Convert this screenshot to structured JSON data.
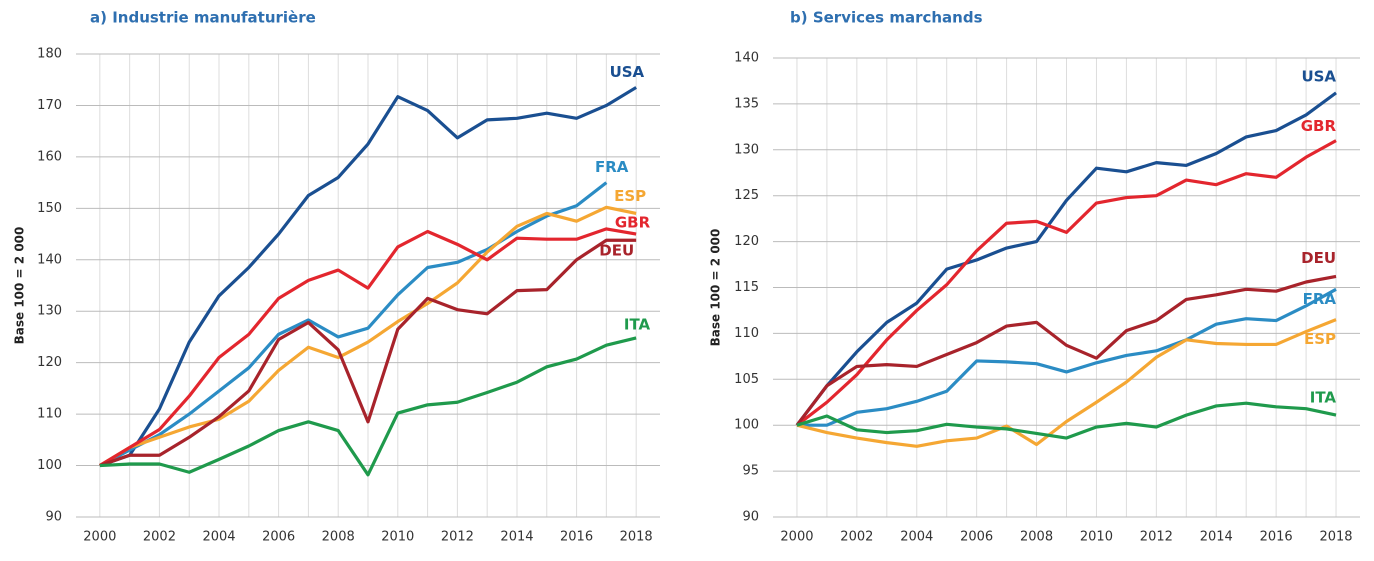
{
  "chart_data": [
    {
      "type": "line",
      "title": "a) Industrie manufaturière",
      "y_label": "Base 100 = 2 000",
      "x": [
        2000,
        2001,
        2002,
        2003,
        2004,
        2005,
        2006,
        2007,
        2008,
        2009,
        2010,
        2011,
        2012,
        2013,
        2014,
        2015,
        2016,
        2017,
        2018
      ],
      "xlim": [
        1999.2,
        2018.8
      ],
      "xticks": [
        2000,
        2002,
        2004,
        2006,
        2008,
        2010,
        2012,
        2014,
        2016,
        2018
      ],
      "ylim": [
        90,
        180
      ],
      "yticks": [
        90,
        100,
        110,
        120,
        130,
        140,
        150,
        160,
        170,
        180
      ],
      "grid": true,
      "series": [
        {
          "name": "USA",
          "color": "#1a4f91",
          "values": [
            100,
            102,
            111,
            124,
            133,
            138.5,
            145,
            152.5,
            156,
            162.5,
            171.7,
            169,
            163.7,
            167.2,
            167.5,
            168.5,
            167.5,
            170,
            173.5
          ]
        },
        {
          "name": "FRA",
          "color": "#2b8cc4",
          "values": [
            100,
            103,
            106,
            110,
            114.5,
            119,
            125.5,
            128.3,
            125,
            126.7,
            133.2,
            138.5,
            139.5,
            142,
            145.5,
            148.5,
            150.5,
            155,
            null
          ]
        },
        {
          "name": "ESP",
          "color": "#f5a733",
          "values": [
            100,
            103.5,
            105.5,
            107.5,
            109,
            112.5,
            118.5,
            123,
            121,
            124,
            128,
            131.5,
            135.5,
            141.5,
            146.5,
            149,
            147.5,
            150.2,
            149
          ]
        },
        {
          "name": "GBR",
          "color": "#e3262e",
          "values": [
            100,
            103.5,
            107,
            113.5,
            121,
            125.5,
            132.5,
            136,
            138,
            134.5,
            142.5,
            145.5,
            143,
            140,
            144.2,
            144,
            144,
            146,
            145
          ]
        },
        {
          "name": "DEU",
          "color": "#a8232b",
          "values": [
            100,
            102,
            102,
            105.5,
            109.5,
            114.5,
            124.5,
            127.8,
            122.5,
            108.5,
            126.5,
            132.5,
            130.3,
            129.5,
            134,
            134.2,
            140,
            143.8,
            143.8
          ]
        },
        {
          "name": "ITA",
          "color": "#1f9a4c",
          "values": [
            100,
            100.3,
            100.3,
            98.7,
            101.2,
            103.8,
            106.8,
            108.5,
            106.8,
            98.2,
            110.2,
            111.8,
            112.3,
            114.2,
            116.2,
            119.2,
            120.7,
            123.4,
            124.8
          ]
        }
      ]
    },
    {
      "type": "line",
      "title": "b) Services marchands",
      "y_label": "Base 100 = 2 000",
      "x": [
        2000,
        2001,
        2002,
        2003,
        2004,
        2005,
        2006,
        2007,
        2008,
        2009,
        2010,
        2011,
        2012,
        2013,
        2014,
        2015,
        2016,
        2017,
        2018
      ],
      "xlim": [
        1999.2,
        2018.8
      ],
      "xticks": [
        2000,
        2002,
        2004,
        2006,
        2008,
        2010,
        2012,
        2014,
        2016,
        2018
      ],
      "ylim": [
        90,
        140
      ],
      "yticks": [
        90,
        95,
        100,
        105,
        110,
        115,
        120,
        125,
        130,
        135,
        140
      ],
      "grid": true,
      "series": [
        {
          "name": "USA",
          "color": "#1a4f91",
          "values": [
            100,
            104.3,
            108,
            111.2,
            113.3,
            117,
            118,
            119.3,
            120,
            124.5,
            128,
            127.6,
            128.6,
            128.3,
            129.6,
            131.4,
            132.1,
            133.8,
            136.2
          ]
        },
        {
          "name": "GBR",
          "color": "#e3262e",
          "values": [
            100,
            102.5,
            105.5,
            109.3,
            112.5,
            115.3,
            119,
            122,
            122.2,
            121,
            124.2,
            124.8,
            125,
            126.7,
            126.2,
            127.4,
            127,
            129.2,
            131
          ]
        },
        {
          "name": "DEU",
          "color": "#a8232b",
          "values": [
            100,
            104.3,
            106.4,
            106.6,
            106.4,
            107.7,
            109,
            110.8,
            111.2,
            108.7,
            107.3,
            110.3,
            111.4,
            113.7,
            114.2,
            114.8,
            114.6,
            115.6,
            116.2
          ]
        },
        {
          "name": "FRA",
          "color": "#2b8cc4",
          "values": [
            100,
            100,
            101.4,
            101.8,
            102.6,
            103.7,
            107,
            106.9,
            106.7,
            105.8,
            106.8,
            107.6,
            108.1,
            109.3,
            111,
            111.6,
            111.4,
            113,
            114.8
          ]
        },
        {
          "name": "ESP",
          "color": "#f5a733",
          "values": [
            100,
            99.2,
            98.6,
            98.1,
            97.7,
            98.3,
            98.6,
            99.9,
            97.9,
            100.4,
            102.5,
            104.7,
            107.4,
            109.3,
            108.9,
            108.8,
            108.8,
            110.2,
            111.5
          ]
        },
        {
          "name": "ITA",
          "color": "#1f9a4c",
          "values": [
            100,
            101,
            99.5,
            99.2,
            99.4,
            100.1,
            99.8,
            99.6,
            99.1,
            98.6,
            99.8,
            100.2,
            99.8,
            101.1,
            102.1,
            102.4,
            102,
            101.8,
            101.1
          ]
        }
      ]
    }
  ]
}
